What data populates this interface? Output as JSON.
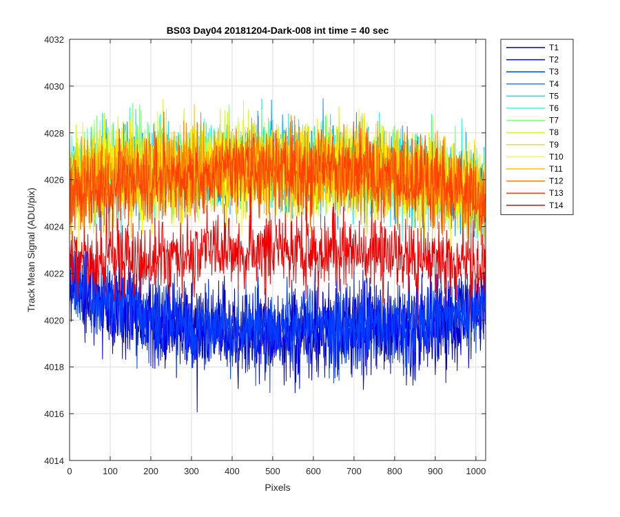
{
  "chart_data": {
    "type": "line",
    "title": "BS03 Day04 20181204-Dark-008 int time = 40 sec",
    "xlabel": "Pixels",
    "ylabel": "Track Mean Signal (ADU/pix)",
    "xlim": [
      0,
      1024
    ],
    "ylim": [
      4014,
      4032
    ],
    "xticks": [
      0,
      100,
      200,
      300,
      400,
      500,
      600,
      700,
      800,
      900,
      1000
    ],
    "yticks": [
      4014,
      4016,
      4018,
      4020,
      4022,
      4024,
      4026,
      4028,
      4030,
      4032
    ],
    "grid": true,
    "legend_position": "outside-top-right",
    "x_points": 1024,
    "series": [
      {
        "name": "T1",
        "color": "#00009f",
        "profile": [
          {
            "x": 0,
            "y": 4021.6
          },
          {
            "x": 100,
            "y": 4020.6
          },
          {
            "x": 300,
            "y": 4019.6
          },
          {
            "x": 500,
            "y": 4019.4
          },
          {
            "x": 700,
            "y": 4019.6
          },
          {
            "x": 900,
            "y": 4019.8
          },
          {
            "x": 1023,
            "y": 4020.6
          }
        ],
        "noise": 0.9
      },
      {
        "name": "T2",
        "color": "#0000ef",
        "profile": [
          {
            "x": 0,
            "y": 4021.6
          },
          {
            "x": 100,
            "y": 4020.6
          },
          {
            "x": 300,
            "y": 4019.6
          },
          {
            "x": 500,
            "y": 4019.4
          },
          {
            "x": 700,
            "y": 4019.6
          },
          {
            "x": 900,
            "y": 4019.8
          },
          {
            "x": 1023,
            "y": 4020.6
          }
        ],
        "noise": 0.9
      },
      {
        "name": "T3",
        "color": "#0040ff",
        "profile": [
          {
            "x": 0,
            "y": 4021.7
          },
          {
            "x": 100,
            "y": 4020.8
          },
          {
            "x": 300,
            "y": 4019.8
          },
          {
            "x": 500,
            "y": 4019.6
          },
          {
            "x": 700,
            "y": 4019.8
          },
          {
            "x": 900,
            "y": 4020.0
          },
          {
            "x": 1023,
            "y": 4020.8
          }
        ],
        "noise": 0.9
      },
      {
        "name": "T4",
        "color": "#0090ff",
        "profile": [
          {
            "x": 0,
            "y": 4025.8
          },
          {
            "x": 100,
            "y": 4026.2
          },
          {
            "x": 300,
            "y": 4026.4
          },
          {
            "x": 500,
            "y": 4026.6
          },
          {
            "x": 700,
            "y": 4026.5
          },
          {
            "x": 900,
            "y": 4026.0
          },
          {
            "x": 1023,
            "y": 4025.2
          }
        ],
        "noise": 0.9
      },
      {
        "name": "T5",
        "color": "#00dfff",
        "profile": [
          {
            "x": 0,
            "y": 4025.9
          },
          {
            "x": 100,
            "y": 4026.3
          },
          {
            "x": 300,
            "y": 4026.5
          },
          {
            "x": 500,
            "y": 4026.7
          },
          {
            "x": 700,
            "y": 4026.5
          },
          {
            "x": 900,
            "y": 4026.0
          },
          {
            "x": 1023,
            "y": 4025.3
          }
        ],
        "noise": 0.9
      },
      {
        "name": "T6",
        "color": "#30ffcf",
        "profile": [
          {
            "x": 0,
            "y": 4025.9
          },
          {
            "x": 100,
            "y": 4026.3
          },
          {
            "x": 300,
            "y": 4026.5
          },
          {
            "x": 500,
            "y": 4026.7
          },
          {
            "x": 700,
            "y": 4026.5
          },
          {
            "x": 900,
            "y": 4026.0
          },
          {
            "x": 1023,
            "y": 4025.3
          }
        ],
        "noise": 0.9
      },
      {
        "name": "T7",
        "color": "#80ff80",
        "profile": [
          {
            "x": 0,
            "y": 4026.4
          },
          {
            "x": 100,
            "y": 4026.9
          },
          {
            "x": 300,
            "y": 4026.6
          },
          {
            "x": 500,
            "y": 4026.7
          },
          {
            "x": 700,
            "y": 4026.5
          },
          {
            "x": 900,
            "y": 4026.0
          },
          {
            "x": 1023,
            "y": 4025.3
          }
        ],
        "noise": 0.9
      },
      {
        "name": "T8",
        "color": "#cfff30",
        "profile": [
          {
            "x": 0,
            "y": 4026.4
          },
          {
            "x": 100,
            "y": 4026.9
          },
          {
            "x": 300,
            "y": 4026.6
          },
          {
            "x": 500,
            "y": 4026.7
          },
          {
            "x": 700,
            "y": 4026.5
          },
          {
            "x": 900,
            "y": 4026.0
          },
          {
            "x": 1023,
            "y": 4025.3
          }
        ],
        "noise": 0.9
      },
      {
        "name": "T9",
        "color": "#ffdf00",
        "profile": [
          {
            "x": 0,
            "y": 4026.0
          },
          {
            "x": 100,
            "y": 4026.3
          },
          {
            "x": 300,
            "y": 4026.5
          },
          {
            "x": 500,
            "y": 4026.7
          },
          {
            "x": 700,
            "y": 4026.5
          },
          {
            "x": 900,
            "y": 4026.0
          },
          {
            "x": 1023,
            "y": 4025.3
          }
        ],
        "noise": 0.9
      },
      {
        "name": "T10",
        "color": "#ffff00",
        "profile": [
          {
            "x": 0,
            "y": 4025.6
          },
          {
            "x": 100,
            "y": 4025.9
          },
          {
            "x": 300,
            "y": 4026.3
          },
          {
            "x": 500,
            "y": 4026.5
          },
          {
            "x": 700,
            "y": 4026.3
          },
          {
            "x": 900,
            "y": 4025.8
          },
          {
            "x": 1023,
            "y": 4025.1
          }
        ],
        "noise": 0.9
      },
      {
        "name": "T11",
        "color": "#ffbf00",
        "profile": [
          {
            "x": 0,
            "y": 4025.7
          },
          {
            "x": 100,
            "y": 4026.0
          },
          {
            "x": 300,
            "y": 4026.3
          },
          {
            "x": 500,
            "y": 4026.6
          },
          {
            "x": 700,
            "y": 4026.4
          },
          {
            "x": 900,
            "y": 4025.9
          },
          {
            "x": 1023,
            "y": 4025.1
          }
        ],
        "noise": 0.9
      },
      {
        "name": "T12",
        "color": "#ff8000",
        "profile": [
          {
            "x": 0,
            "y": 4025.8
          },
          {
            "x": 100,
            "y": 4026.1
          },
          {
            "x": 300,
            "y": 4026.4
          },
          {
            "x": 500,
            "y": 4026.6
          },
          {
            "x": 700,
            "y": 4026.4
          },
          {
            "x": 900,
            "y": 4025.9
          },
          {
            "x": 1023,
            "y": 4025.2
          }
        ],
        "noise": 0.9
      },
      {
        "name": "T13",
        "color": "#ff4000",
        "profile": [
          {
            "x": 0,
            "y": 4025.4
          },
          {
            "x": 100,
            "y": 4025.8
          },
          {
            "x": 300,
            "y": 4026.2
          },
          {
            "x": 500,
            "y": 4026.5
          },
          {
            "x": 700,
            "y": 4026.3
          },
          {
            "x": 900,
            "y": 4025.8
          },
          {
            "x": 1023,
            "y": 4025.0
          }
        ],
        "noise": 0.9
      },
      {
        "name": "T14",
        "color": "#ef0000",
        "profile": [
          {
            "x": 0,
            "y": 4022.5
          },
          {
            "x": 100,
            "y": 4022.6
          },
          {
            "x": 300,
            "y": 4022.9
          },
          {
            "x": 500,
            "y": 4023.0
          },
          {
            "x": 700,
            "y": 4023.0
          },
          {
            "x": 900,
            "y": 4022.6
          },
          {
            "x": 1023,
            "y": 4022.2
          }
        ],
        "noise": 0.8
      }
    ]
  }
}
